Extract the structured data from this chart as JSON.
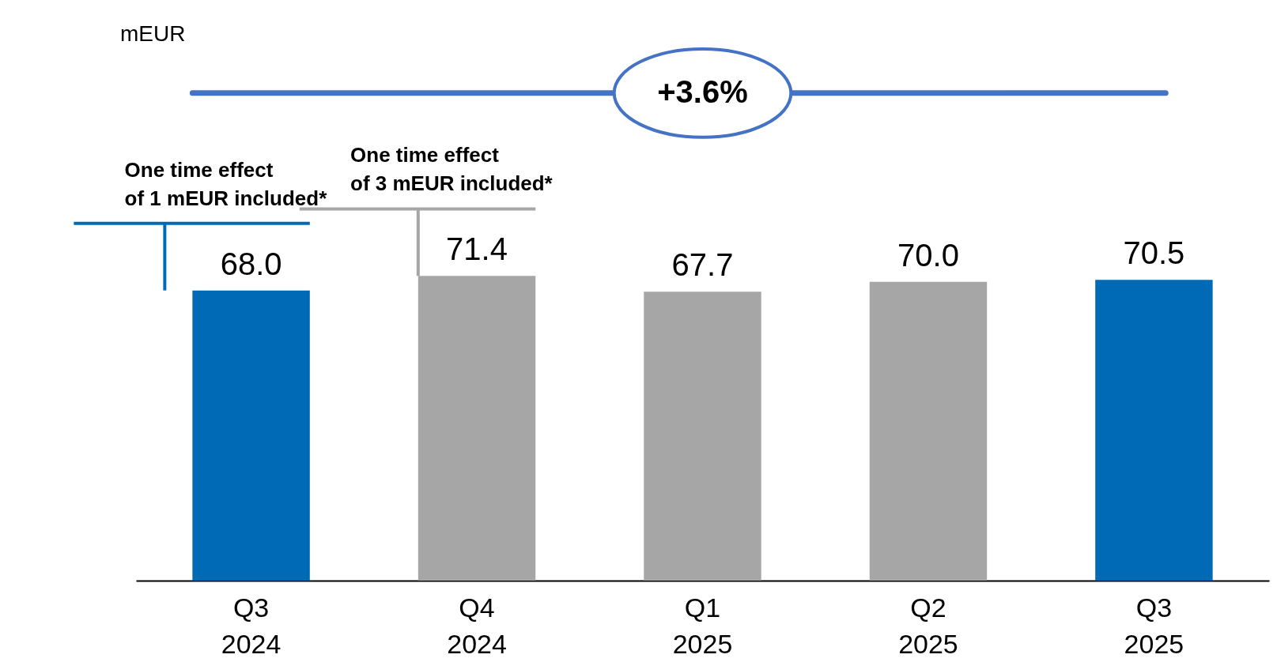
{
  "chart_data": {
    "type": "bar",
    "categories": [
      "Q3 2024",
      "Q4 2024",
      "Q1 2025",
      "Q2 2025",
      "Q3 2025"
    ],
    "values": [
      68.0,
      71.4,
      67.7,
      70.0,
      70.5
    ],
    "value_labels": [
      "68.0",
      "71.4",
      "67.7",
      "70.0",
      "70.5"
    ],
    "colors": [
      "#006ab7",
      "#a6a6a6",
      "#a6a6a6",
      "#a6a6a6",
      "#006ab7"
    ],
    "grid": false,
    "annotations": [
      "mEUR",
      "+3.6%",
      "One time effect of 1 mEUR included*",
      "One time effect of 3 mEUR included*"
    ]
  }
}
